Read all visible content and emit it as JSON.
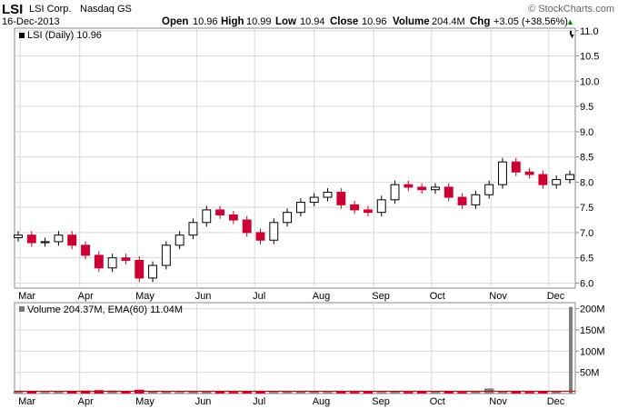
{
  "header": {
    "symbol": "LSI",
    "company": "LSI Corp.",
    "exchange": "Nasdaq GS",
    "date": "16-Dec-2013",
    "brand": "© StockCharts.com",
    "open_label": "Open",
    "open_value": "10.96",
    "high_label": "High",
    "high_value": "10.99",
    "low_label": "Low",
    "low_value": "10.94",
    "close_label": "Close",
    "close_value": "10.96",
    "volume_label": "Volume",
    "volume_value": "204.4M",
    "chg_label": "Chg",
    "chg_value": "+3.05 (+38.56%)",
    "chg_arrow": "▲"
  },
  "colors": {
    "up": "#000000",
    "down": "#cc0033",
    "grid": "#d9d9d9",
    "volume_up": "#7f7f7f",
    "volume_down": "#cc0033",
    "ema": "#cc0000"
  },
  "chart_data": [
    {
      "type": "candlestick",
      "legend": "LSI (Daily) 10.96",
      "x_tick_labels": [
        "Mar",
        "Apr",
        "May",
        "Jun",
        "Jul",
        "Aug",
        "Sep",
        "Oct",
        "Nov",
        "Dec"
      ],
      "y_tick_labels": [
        "6.0",
        "6.5",
        "7.0",
        "7.5",
        "8.0",
        "8.5",
        "9.0",
        "9.5",
        "10.0",
        "10.5",
        "11.0"
      ],
      "ylim": [
        5.9,
        11.05
      ],
      "grid": true,
      "y_axis_side": "right",
      "last_close": 10.96,
      "dates": [
        "2013-02-28",
        "2013-03-07",
        "2013-03-14",
        "2013-03-21",
        "2013-03-28",
        "2013-04-04",
        "2013-04-11",
        "2013-04-18",
        "2013-04-25",
        "2013-05-02",
        "2013-05-09",
        "2013-05-16",
        "2013-05-23",
        "2013-05-30",
        "2013-06-06",
        "2013-06-13",
        "2013-06-20",
        "2013-06-27",
        "2013-07-04",
        "2013-07-11",
        "2013-07-18",
        "2013-07-25",
        "2013-08-01",
        "2013-08-08",
        "2013-08-15",
        "2013-08-22",
        "2013-08-29",
        "2013-09-05",
        "2013-09-12",
        "2013-09-19",
        "2013-09-26",
        "2013-10-03",
        "2013-10-10",
        "2013-10-17",
        "2013-10-24",
        "2013-10-31",
        "2013-11-07",
        "2013-11-14",
        "2013-11-21",
        "2013-11-28",
        "2013-12-05",
        "2013-12-12"
      ],
      "close": [
        6.95,
        6.8,
        6.82,
        6.95,
        6.75,
        6.55,
        6.3,
        6.5,
        6.45,
        6.1,
        6.35,
        6.75,
        6.95,
        7.2,
        7.45,
        7.35,
        7.25,
        7.0,
        6.85,
        7.2,
        7.4,
        7.6,
        7.7,
        7.8,
        7.55,
        7.45,
        7.4,
        7.65,
        7.95,
        7.9,
        7.85,
        7.9,
        7.7,
        7.55,
        7.75,
        7.95,
        8.4,
        8.2,
        8.15,
        7.95,
        8.05,
        8.15
      ],
      "volume_legend": "Volume 204.37M, EMA(60) 11.04M",
      "volume_tick_labels": [
        "50M",
        "100M",
        "150M",
        "200M"
      ],
      "volume_ylim": [
        0,
        210
      ],
      "volume_millions": [
        6,
        5,
        4,
        5,
        6,
        7,
        8,
        7,
        5,
        9,
        6,
        5,
        4,
        5,
        6,
        5,
        4,
        6,
        5,
        4,
        5,
        6,
        5,
        4,
        5,
        4,
        5,
        4,
        5,
        4,
        5,
        6,
        5,
        4,
        5,
        12,
        6,
        5,
        4,
        5,
        5,
        204.4
      ],
      "volume_ema_millions": 11.04
    }
  ]
}
